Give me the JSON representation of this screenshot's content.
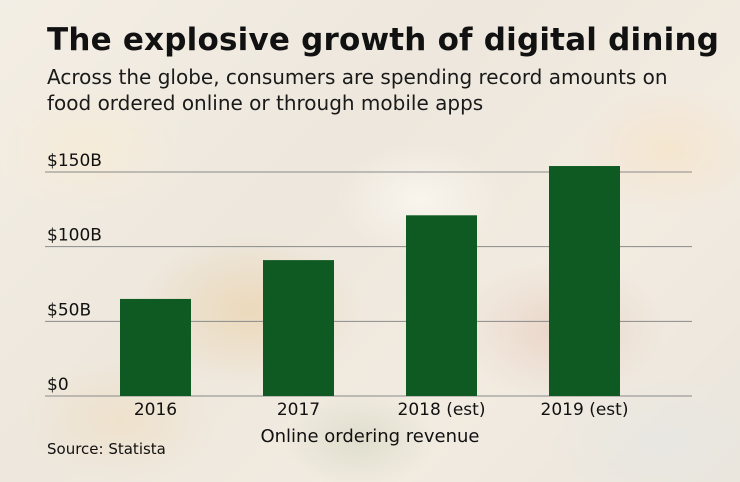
{
  "header": {
    "title": "The explosive growth of digital dining",
    "subtitle": "Across the globe, consumers are spending record amounts on food ordered online or through mobile apps"
  },
  "footer": {
    "source": "Source: Statista"
  },
  "colors": {
    "bar": "#0f5a23",
    "grid": "#8a8a8a"
  },
  "chart_data": {
    "type": "bar",
    "categories": [
      "2016",
      "2017",
      "2018 (est)",
      "2019 (est)"
    ],
    "values": [
      65,
      91,
      121,
      154
    ],
    "xlabel": "Online ordering revenue",
    "ylabel": "",
    "ylim": [
      0,
      150
    ],
    "yticks": [
      0,
      50,
      100,
      150
    ],
    "ytick_labels": [
      "$0",
      "$50B",
      "$100B",
      "$150B"
    ],
    "grid": true
  }
}
